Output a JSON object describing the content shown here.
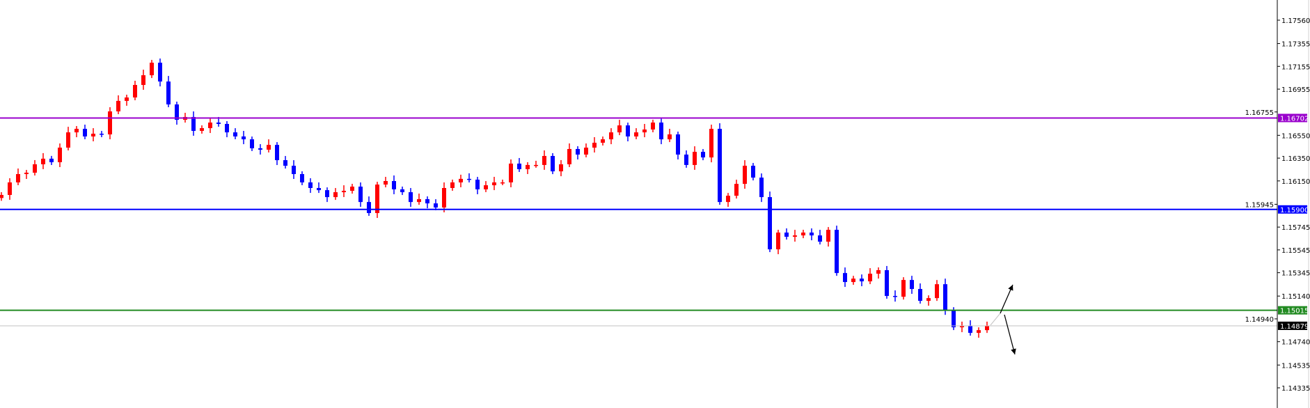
{
  "chart_data": {
    "type": "candlestick",
    "ylim": [
      1.14158,
      1.17737
    ],
    "grid": false,
    "colors": {
      "bull": "#ff0000",
      "bear": "#0000ff",
      "axis": "#000000"
    },
    "y_ticks": [
      "1.17560",
      "1.17355",
      "1.17155",
      "1.16955",
      "1.16755",
      "1.16550",
      "1.16350",
      "1.16150",
      "1.15945",
      "1.15745",
      "1.15545",
      "1.15345",
      "1.15140",
      "1.14940",
      "1.14740",
      "1.14535",
      "1.14335"
    ],
    "levels": [
      {
        "price": 1.16702,
        "label": "1.16702",
        "color": "#9900cc",
        "width": 2
      },
      {
        "price": 1.159,
        "label": "1.15900",
        "color": "#0000ff",
        "width": 2
      },
      {
        "price": 1.15015,
        "label": "1.15015",
        "color": "#228b22",
        "width": 2
      },
      {
        "price": 1.14879,
        "label": "1.14879",
        "color": "#c0c0c0",
        "label_bg": "#000000",
        "width": 1
      }
    ],
    "first_open": 1.16,
    "close": [
      1.16027,
      1.16137,
      1.1621,
      1.16222,
      1.16296,
      1.16345,
      1.16314,
      1.16442,
      1.16576,
      1.16607,
      1.1654,
      1.16564,
      1.16558,
      1.1676,
      1.16852,
      1.16882,
      1.16992,
      1.17077,
      1.17187,
      1.17022,
      1.16821,
      1.16686,
      1.16711,
      1.16589,
      1.16613,
      1.16662,
      1.1665,
      1.16576,
      1.1654,
      1.16515,
      1.16436,
      1.16424,
      1.16466,
      1.16332,
      1.16283,
      1.1621,
      1.16137,
      1.16088,
      1.16069,
      1.16008,
      1.16051,
      1.16063,
      1.161,
      1.15965,
      1.15868,
      1.16118,
      1.16149,
      1.16076,
      1.16051,
      1.15965,
      1.1599,
      1.15953,
      1.15917,
      1.16088,
      1.16137,
      1.16168,
      1.16161,
      1.16076,
      1.16112,
      1.16137,
      1.16137,
      1.16302,
      1.16253,
      1.1629,
      1.1629,
      1.16369,
      1.16234,
      1.16296,
      1.1643,
      1.16381,
      1.16442,
      1.16485,
      1.16515,
      1.16576,
      1.16637,
      1.1654,
      1.16576,
      1.16601,
      1.16662,
      1.16515,
      1.16558,
      1.16381,
      1.1629,
      1.16405,
      1.16356,
      1.16607,
      1.15965,
      1.1602,
      1.16124,
      1.16283,
      1.16179,
      1.16008,
      1.1555,
      1.15697,
      1.1566,
      1.15672,
      1.15697,
      1.15672,
      1.15617,
      1.15721,
      1.15342,
      1.15263,
      1.15293,
      1.15269,
      1.15336,
      1.15367,
      1.15141,
      1.15134,
      1.15281,
      1.15202,
      1.15098,
      1.15122,
      1.15244,
      1.15018,
      1.14866,
      1.14879,
      1.14817,
      1.14841,
      1.14879
    ],
    "projection_arrows": [
      {
        "direction": "up",
        "color": "#000000"
      },
      {
        "direction": "down",
        "color": "#000000"
      }
    ]
  }
}
